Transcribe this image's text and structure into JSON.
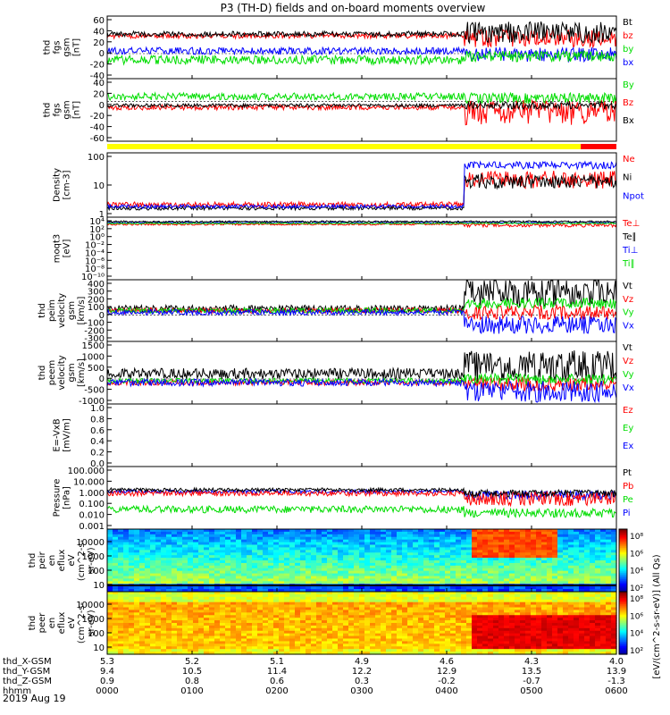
{
  "title": "P3 (TH-D) fields and on-board moments overview",
  "colors": {
    "black": "#000000",
    "red": "#ff0000",
    "green": "#00dd00",
    "blue": "#0000ff",
    "yellow": "#ffff00"
  },
  "chart_data": {
    "type": "line",
    "date": "2019 Aug 19",
    "x_ticks": [
      "0000",
      "0100",
      "0200",
      "0300",
      "0400",
      "0500",
      "0600"
    ],
    "panels": [
      {
        "id": "fgs-gsm",
        "ylabel": [
          "thd",
          "fgs",
          "gsm",
          "[nT]"
        ],
        "yticks": [
          "60",
          "40",
          "20",
          "0",
          "-20",
          "-40"
        ],
        "ylim": [
          -40,
          60
        ],
        "legend": [
          {
            "label": "Bt",
            "color": "black"
          },
          {
            "label": "bz",
            "color": "red"
          },
          {
            "label": "by",
            "color": "green"
          },
          {
            "label": "bx",
            "color": "blue"
          }
        ]
      },
      {
        "id": "fgs-dsl",
        "ylabel": [
          "thd",
          "fgs",
          "gsm",
          "[nT]"
        ],
        "yticks": [
          "40",
          "20",
          "0",
          "-20",
          "-40",
          "-60"
        ],
        "ylim": [
          -70,
          40
        ],
        "legend": [
          {
            "label": "By",
            "color": "green"
          },
          {
            "label": "Bz",
            "color": "red"
          },
          {
            "label": "Bx",
            "color": "black"
          }
        ]
      },
      {
        "id": "density",
        "ylabel": [
          "Density",
          "[cm-3]"
        ],
        "yticks": [
          "100",
          "10",
          "1"
        ],
        "scale": "log",
        "legend": [
          {
            "label": "Ne",
            "color": "red"
          },
          {
            "label": "Ni",
            "color": "black"
          },
          {
            "label": "Npot",
            "color": "blue"
          }
        ]
      },
      {
        "id": "temperature",
        "ylabel": [
          "moqt3",
          "[eV]"
        ],
        "yticks": [
          "10⁴",
          "10²",
          "10⁰",
          "10⁻²",
          "10⁻⁴",
          "10⁻⁶",
          "10⁻⁸",
          "10⁻¹⁰"
        ],
        "scale": "log",
        "legend": [
          {
            "label": "Te⊥",
            "color": "red"
          },
          {
            "label": "Te∥",
            "color": "black"
          },
          {
            "label": "Ti⊥",
            "color": "blue"
          },
          {
            "label": "Ti∥",
            "color": "green"
          }
        ]
      },
      {
        "id": "ion-velocity",
        "ylabel": [
          "thd",
          "peim",
          "velocity",
          "gsm",
          "[km/s]"
        ],
        "yticks": [
          "400",
          "300",
          "200",
          "100",
          "0",
          "-100",
          "-200",
          "-300"
        ],
        "ylim": [
          -300,
          400
        ],
        "legend": [
          {
            "label": "Vt",
            "color": "black"
          },
          {
            "label": "Vz",
            "color": "red"
          },
          {
            "label": "Vy",
            "color": "green"
          },
          {
            "label": "Vx",
            "color": "blue"
          }
        ]
      },
      {
        "id": "electron-velocity",
        "ylabel": [
          "thd",
          "peem",
          "velocity",
          "gsm",
          "[km/s]"
        ],
        "yticks": [
          "1500",
          "1000",
          "500",
          "0",
          "-500",
          "-1000"
        ],
        "ylim": [
          -1000,
          1500
        ],
        "legend": [
          {
            "label": "Vt",
            "color": "black"
          },
          {
            "label": "Vz",
            "color": "red"
          },
          {
            "label": "Vy",
            "color": "green"
          },
          {
            "label": "Vx",
            "color": "blue"
          }
        ]
      },
      {
        "id": "efield",
        "ylabel": [
          "E=-VxB",
          "[mV/m]"
        ],
        "yticks": [
          "1.0",
          "0.8",
          "0.6",
          "0.4",
          "0.2",
          "0.0"
        ],
        "ylim": [
          0,
          1
        ],
        "legend": [
          {
            "label": "Ez",
            "color": "red"
          },
          {
            "label": "Ey",
            "color": "green"
          },
          {
            "label": "Ex",
            "color": "blue"
          }
        ]
      },
      {
        "id": "pressure",
        "ylabel": [
          "Pressure",
          "[nPa]"
        ],
        "yticks": [
          "100.000",
          "10.000",
          "1.000",
          "0.100",
          "0.010",
          "0.001"
        ],
        "scale": "log",
        "legend": [
          {
            "label": "Pt",
            "color": "black"
          },
          {
            "label": "Pb",
            "color": "red"
          },
          {
            "label": "Pe",
            "color": "green"
          },
          {
            "label": "Pi",
            "color": "blue"
          }
        ]
      },
      {
        "id": "peir-spectrogram",
        "type": "heatmap",
        "ylabel": [
          "thd",
          "peir",
          "en",
          "eflux",
          "eV",
          "(cm^2-s-",
          "sr-eV)"
        ],
        "yticks": [
          "10000",
          "1000",
          "100",
          "10"
        ],
        "colorbar": {
          "ticks": [
            "10⁸",
            "10⁶",
            "10⁴",
            "10²"
          ],
          "label": "[eV/(cm^2-s-sr-eV)] (All Qs)"
        }
      },
      {
        "id": "peer-spectrogram",
        "type": "heatmap",
        "ylabel": [
          "thd",
          "peer",
          "en",
          "eflux",
          "eV",
          "(cm^2-s-",
          "sr-eV)"
        ],
        "yticks": [
          "10000",
          "1000",
          "100",
          "10"
        ],
        "colorbar": {
          "ticks": [
            "10⁸",
            "10⁶",
            "10⁴",
            "10²"
          ],
          "label": "[eV/(cm^2-s-sr-eV)] (All Qs)"
        }
      }
    ],
    "orbit_rows": [
      {
        "label": "thd_X-GSM",
        "values": [
          "5.3",
          "5.2",
          "5.1",
          "4.9",
          "4.6",
          "4.3",
          "4.0"
        ]
      },
      {
        "label": "thd_Y-GSM",
        "values": [
          "9.4",
          "10.5",
          "11.4",
          "12.2",
          "12.9",
          "13.5",
          "13.9"
        ]
      },
      {
        "label": "thd_Z-GSM",
        "values": [
          "0.9",
          "0.8",
          "0.6",
          "0.3",
          "-0.2",
          "-0.7",
          "-1.3"
        ]
      },
      {
        "label": "hhmm",
        "values": [
          "0000",
          "0100",
          "0200",
          "0300",
          "0400",
          "0500",
          "0600"
        ]
      }
    ]
  }
}
